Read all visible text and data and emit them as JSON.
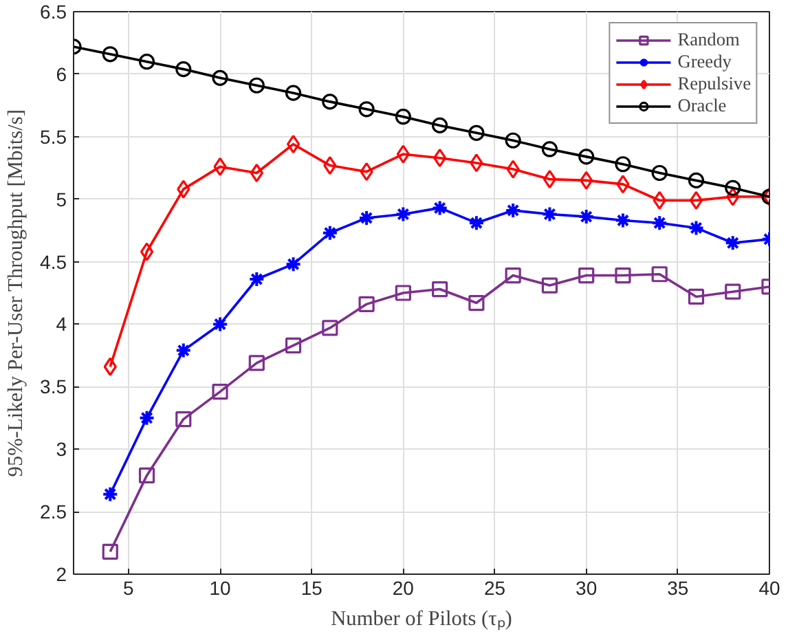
{
  "chart_data": {
    "type": "line",
    "xlabel": "Number of Pilots (τₚ)",
    "ylabel": "95%-Likely Per-User Throughput [Mbits/s]",
    "x": [
      2,
      4,
      6,
      8,
      10,
      12,
      14,
      16,
      18,
      20,
      22,
      24,
      26,
      28,
      30,
      32,
      34,
      36,
      38,
      40
    ],
    "series": [
      {
        "name": "Random",
        "color": "#7e2f8e",
        "marker": "square",
        "values": [
          null,
          2.18,
          2.79,
          3.24,
          3.46,
          3.69,
          3.83,
          3.97,
          4.16,
          4.25,
          4.28,
          4.17,
          4.39,
          4.31,
          4.39,
          4.39,
          4.4,
          4.22,
          4.26,
          4.3
        ]
      },
      {
        "name": "Greedy",
        "color": "#0000ff",
        "marker": "cross",
        "values": [
          null,
          2.64,
          3.25,
          3.79,
          4.0,
          4.36,
          4.48,
          4.73,
          4.85,
          4.88,
          4.93,
          4.81,
          4.91,
          4.88,
          4.86,
          4.83,
          4.81,
          4.77,
          4.65,
          4.68
        ]
      },
      {
        "name": "Repulsive",
        "color": "#ff0000",
        "marker": "diamond",
        "values": [
          null,
          3.66,
          4.58,
          5.08,
          5.26,
          5.21,
          5.44,
          5.27,
          5.22,
          5.36,
          5.33,
          5.29,
          5.24,
          5.16,
          5.15,
          5.12,
          4.99,
          4.99,
          5.02,
          5.02
        ]
      },
      {
        "name": "Oracle",
        "color": "#000000",
        "marker": "circle",
        "values": [
          6.22,
          6.16,
          6.1,
          6.04,
          5.97,
          5.91,
          5.85,
          5.78,
          5.72,
          5.66,
          5.59,
          5.53,
          5.47,
          5.4,
          5.34,
          5.28,
          5.21,
          5.15,
          5.09,
          5.02
        ]
      }
    ],
    "xlim": [
      2,
      40
    ],
    "xticks": [
      5,
      10,
      15,
      20,
      25,
      30,
      35,
      40
    ],
    "ylim": [
      2,
      6.5
    ],
    "yticks": [
      2,
      2.5,
      3,
      3.5,
      4,
      4.5,
      5,
      5.5,
      6,
      6.5
    ],
    "grid": true,
    "legend": "top right",
    "line_style": "solid"
  }
}
